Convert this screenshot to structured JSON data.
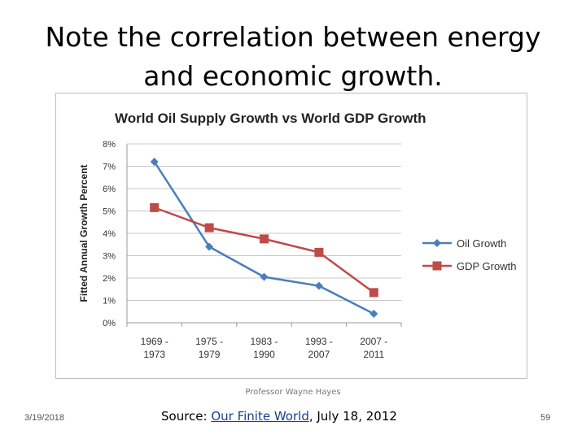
{
  "slide": {
    "title_line1": "Note the correlation between energy",
    "title_line2": "and economic growth.",
    "presenter": "Professor Wayne Hayes",
    "date": "3/19/2018",
    "source_prefix": "Source: ",
    "source_link": "Our Finite World",
    "source_suffix": ", July 18, 2012",
    "page_number": "59"
  },
  "chart_data": {
    "type": "line",
    "title": "World Oil Supply Growth vs World GDP Growth",
    "ylabel": "Fitted Annual Growth Percent",
    "xlabel": "",
    "categories": [
      "1969 - 1973",
      "1975 - 1979",
      "1983 - 1990",
      "1993 - 2007",
      "2007 - 2011"
    ],
    "category_lines": [
      [
        "1969 -",
        "1973"
      ],
      [
        "1975 -",
        "1979"
      ],
      [
        "1983 -",
        "1990"
      ],
      [
        "1993 -",
        "2007"
      ],
      [
        "2007 -",
        "2011"
      ]
    ],
    "yticks": [
      "0%",
      "1%",
      "2%",
      "3%",
      "4%",
      "5%",
      "6%",
      "7%",
      "8%"
    ],
    "ylim": [
      0,
      8
    ],
    "grid": true,
    "legend_position": "right",
    "series": [
      {
        "name": "Oil Growth",
        "color": "#4a7ebb",
        "marker": "diamond",
        "values": [
          7.2,
          3.4,
          2.05,
          1.65,
          0.4
        ]
      },
      {
        "name": "GDP Growth",
        "color": "#be4b48",
        "marker": "square",
        "values": [
          5.15,
          4.25,
          3.75,
          3.15,
          1.35
        ]
      }
    ]
  }
}
